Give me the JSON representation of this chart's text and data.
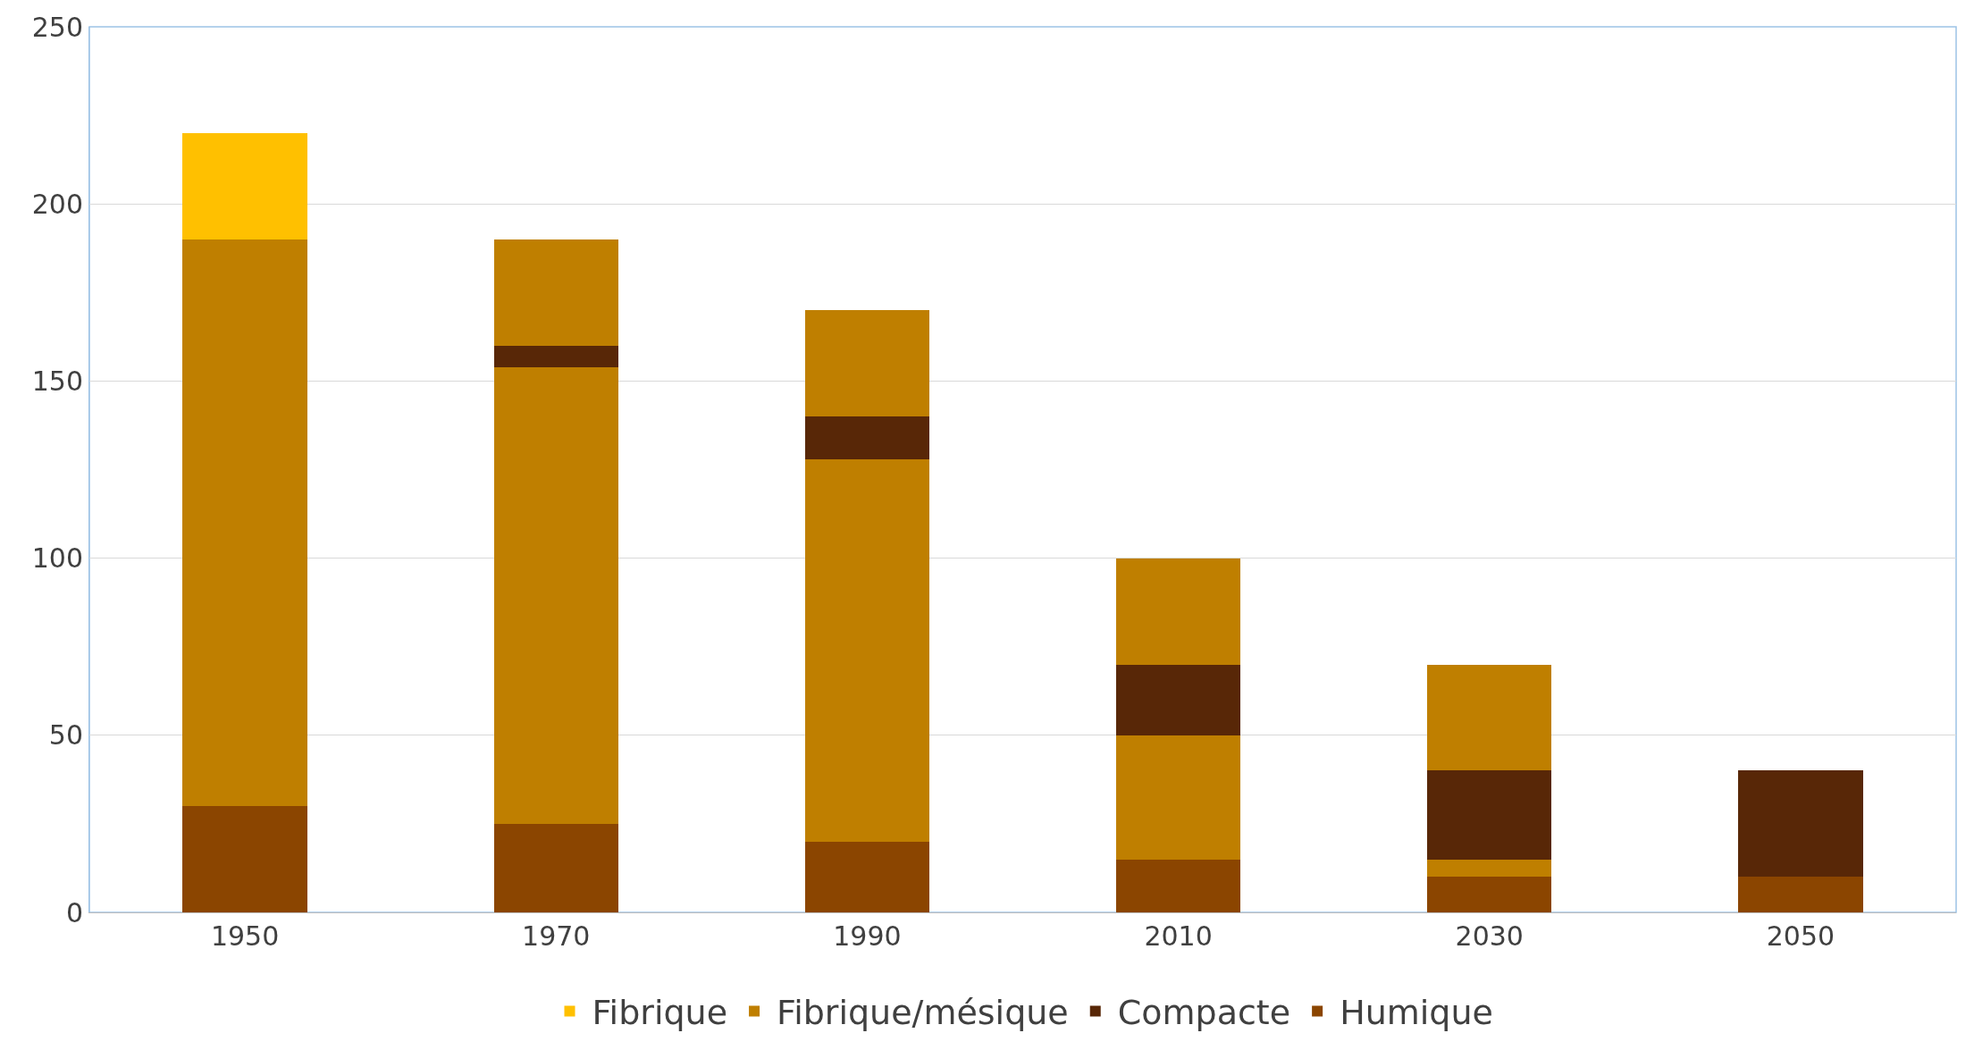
{
  "chart_data": {
    "type": "bar",
    "stacked": true,
    "categories": [
      "1950",
      "1970",
      "1990",
      "2010",
      "2030",
      "2050"
    ],
    "series": [
      {
        "name": "Humique",
        "color": "#8b4500",
        "values": [
          30,
          25,
          20,
          15,
          10,
          10
        ]
      },
      {
        "color": "#bf7f00",
        "values": [
          160,
          129,
          108,
          35,
          5,
          null
        ]
      },
      {
        "name": "Compacte",
        "color": "#582707",
        "values": [
          null,
          6,
          12,
          20,
          25,
          30
        ]
      },
      {
        "name": "Fibrique/mésique",
        "color": "#bf7f00",
        "values": [
          null,
          30,
          30,
          30,
          30,
          null
        ]
      },
      {
        "name": "Fibrique",
        "color": "#ffc000",
        "values": [
          30,
          null,
          null,
          null,
          null,
          null
        ]
      }
    ],
    "ylim": [
      0,
      250
    ],
    "yticks": [
      0,
      50,
      100,
      150,
      200,
      250
    ],
    "grid": "y",
    "legend": "bottom"
  }
}
